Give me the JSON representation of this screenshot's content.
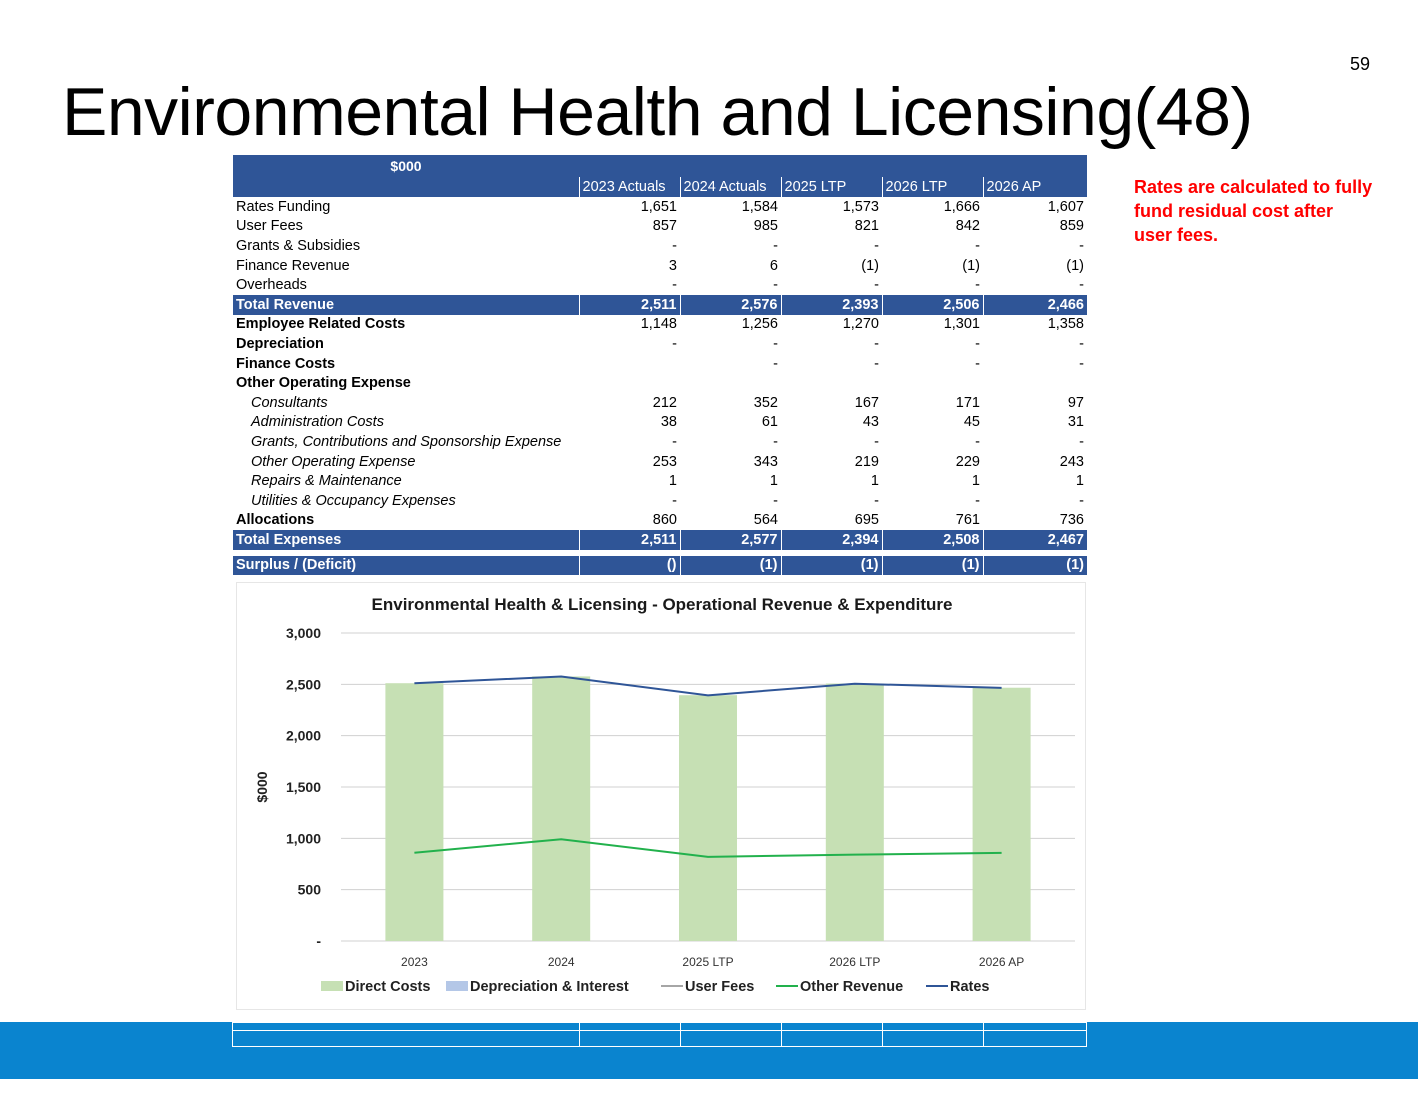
{
  "page_number": "59",
  "title": "Environmental Health and Licensing(48)",
  "note": "Rates are calculated to fully fund residual cost after user fees.",
  "table": {
    "unit_header": "$000",
    "columns": [
      "2023 Actuals",
      "2024 Actuals",
      "2025 LTP",
      "2026 LTP",
      "2026 AP"
    ],
    "rows": [
      {
        "label": "Rates Funding",
        "values": [
          "1,651",
          "1,584",
          "1,573",
          "1,666",
          "1,607"
        ],
        "style": "normal"
      },
      {
        "label": "User Fees",
        "values": [
          "857",
          "985",
          "821",
          "842",
          "859"
        ],
        "style": "normal"
      },
      {
        "label": "Grants & Subsidies",
        "values": [
          "-",
          "-",
          "-",
          "-",
          "-"
        ],
        "style": "normal"
      },
      {
        "label": "Finance Revenue",
        "values": [
          "3",
          "6",
          "(1)",
          "(1)",
          "(1)"
        ],
        "style": "normal"
      },
      {
        "label": "Overheads",
        "values": [
          "-",
          "-",
          "-",
          "-",
          "-"
        ],
        "style": "normal"
      },
      {
        "label": "Total Revenue",
        "values": [
          "2,511",
          "2,576",
          "2,393",
          "2,506",
          "2,466"
        ],
        "style": "total"
      },
      {
        "label": "Employee Related Costs",
        "values": [
          "1,148",
          "1,256",
          "1,270",
          "1,301",
          "1,358"
        ],
        "style": "bold"
      },
      {
        "label": "Depreciation",
        "values": [
          "-",
          "-",
          "-",
          "-",
          "-"
        ],
        "style": "bold"
      },
      {
        "label": "Finance Costs",
        "values": [
          "",
          "-",
          "-",
          "-",
          "-"
        ],
        "style": "bold"
      },
      {
        "label": "Other Operating  Expense",
        "values": [
          "",
          "",
          "",
          "",
          ""
        ],
        "style": "bold"
      },
      {
        "label": "Consultants",
        "values": [
          "212",
          "352",
          "167",
          "171",
          "97"
        ],
        "style": "italic"
      },
      {
        "label": "Administration Costs",
        "values": [
          "38",
          "61",
          "43",
          "45",
          "31"
        ],
        "style": "italic"
      },
      {
        "label": "Grants, Contributions and Sponsorship Expense",
        "values": [
          "-",
          "-",
          "-",
          "-",
          "-"
        ],
        "style": "italic"
      },
      {
        "label": "Other Operating Expense",
        "values": [
          "253",
          "343",
          "219",
          "229",
          "243"
        ],
        "style": "italic"
      },
      {
        "label": "Repairs & Maintenance",
        "values": [
          "1",
          "1",
          "1",
          "1",
          "1"
        ],
        "style": "italic"
      },
      {
        "label": "Utilities & Occupancy Expenses",
        "values": [
          "-",
          "-",
          "-",
          "-",
          "-"
        ],
        "style": "italic"
      },
      {
        "label": "Allocations",
        "values": [
          "860",
          "564",
          "695",
          "761",
          "736"
        ],
        "style": "bold"
      },
      {
        "label": "Total Expenses",
        "values": [
          "2,511",
          "2,577",
          "2,394",
          "2,508",
          "2,467"
        ],
        "style": "total"
      },
      {
        "label": "",
        "values": [
          "",
          "",
          "",
          "",
          ""
        ],
        "style": "spacer"
      },
      {
        "label": "Surplus / (Deficit)",
        "values": [
          "()",
          "(1)",
          "(1)",
          "(1)",
          "(1)"
        ],
        "style": "total"
      }
    ]
  },
  "chart_data": {
    "type": "bar",
    "title": "Environmental Health & Licensing - Operational Revenue & Expenditure",
    "ylabel": "$000",
    "xlabel": "",
    "categories": [
      "2023",
      "2024",
      "2025 LTP",
      "2026 LTP",
      "2026 AP"
    ],
    "ylim": [
      0,
      3000
    ],
    "yticks": [
      0,
      500,
      1000,
      1500,
      2000,
      2500,
      3000
    ],
    "ytick_labels": [
      "-",
      "500",
      "1,000",
      "1,500",
      "2,000",
      "2,500",
      "3,000"
    ],
    "grid": true,
    "legend_position": "bottom",
    "series": [
      {
        "name": "Direct Costs",
        "kind": "bar",
        "color": "#c6e0b4",
        "values": [
          2511,
          2577,
          2394,
          2508,
          2467
        ]
      },
      {
        "name": "Depreciation & Interest",
        "kind": "bar",
        "color": "#b4c7e7",
        "values": [
          0,
          0,
          0,
          0,
          0
        ]
      },
      {
        "name": "User Fees",
        "kind": "line",
        "color": "#a6a6a6",
        "values": [
          0,
          0,
          0,
          0,
          0
        ]
      },
      {
        "name": "Other Revenue",
        "kind": "line",
        "color": "#22b14c",
        "values": [
          860,
          991,
          820,
          841,
          858
        ]
      },
      {
        "name": "Rates",
        "kind": "line",
        "color": "#2f5597",
        "values": [
          2511,
          2576,
          2393,
          2506,
          2466
        ]
      }
    ]
  },
  "colors": {
    "table_header": "#2f5597",
    "note": "#ff0000",
    "footer": "#0a84cf"
  }
}
